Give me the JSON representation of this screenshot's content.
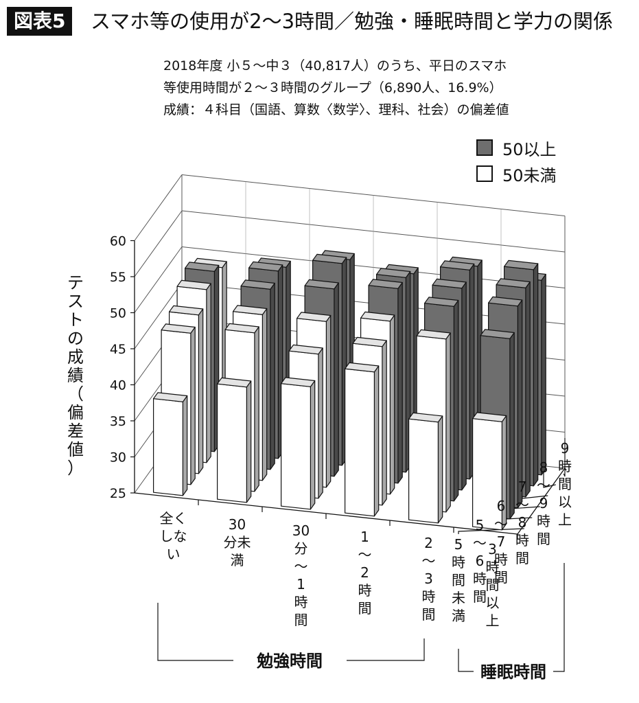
{
  "header": {
    "figure_label": "図表5",
    "title": "スマホ等の使用が2〜3時間／勉強・睡眠時間と学力の関係"
  },
  "subtitle": [
    "2018年度 小５〜中３（40,817人）のうち、平日のスマホ",
    "等使用時間が２〜３時間のグループ（6,890人、16.9%）",
    "成績：４科目（国語、算数〈数学〉、理科、社会）の偏差値"
  ],
  "legend": [
    {
      "label": "50以上",
      "color": "#6e6e6e"
    },
    {
      "label": "50未満",
      "color": "#ffffff"
    }
  ],
  "chart_data": {
    "type": "bar",
    "ylabel": "テストの成績（偏差値）",
    "ylim": [
      25,
      60
    ],
    "y_ticks": [
      25,
      30,
      35,
      40,
      45,
      50,
      55,
      60
    ],
    "x_axis_title": "勉強時間",
    "x_categories": [
      "全くしない",
      "30分未満",
      "30分〜1時間",
      "1〜2時間",
      "2〜3時間",
      "3時間以上"
    ],
    "x_tick_labels": [
      "全く|しな|い",
      "30|分未|満",
      "30|分|〜|1|時|間",
      "1|〜|2|時|間",
      "2|〜|3|時|間",
      "3|時|間|以|上"
    ],
    "z_axis_title": "睡眠時間",
    "z_categories": [
      "5時間未満",
      "5〜6時間",
      "6〜7時間",
      "7〜8時間",
      "8〜9時間",
      "9時間以上"
    ],
    "z_tick_labels": [
      "5|時|間|未|満",
      "5|〜|6|時|間",
      "6|〜|7|時|間",
      "7|〜|8|時|間",
      "8|〜|9|時|間",
      "9|時|間|以|上"
    ],
    "threshold": 50,
    "series": [
      {
        "name": "5時間未満",
        "values": [
          38,
          41,
          42,
          45,
          39,
          40
        ]
      },
      {
        "name": "5〜6時間",
        "values": [
          46,
          47,
          45,
          47,
          49,
          50
        ]
      },
      {
        "name": "6〜7時間",
        "values": [
          47,
          48,
          48,
          49,
          52,
          53
        ]
      },
      {
        "name": "7〜8時間",
        "values": [
          49,
          50,
          51,
          52,
          53,
          54
        ]
      },
      {
        "name": "8〜9時間",
        "values": [
          50,
          51,
          53,
          52,
          54,
          55
        ]
      },
      {
        "name": "9時間以上",
        "values": [
          49,
          50,
          52,
          51,
          53,
          52
        ]
      }
    ]
  }
}
